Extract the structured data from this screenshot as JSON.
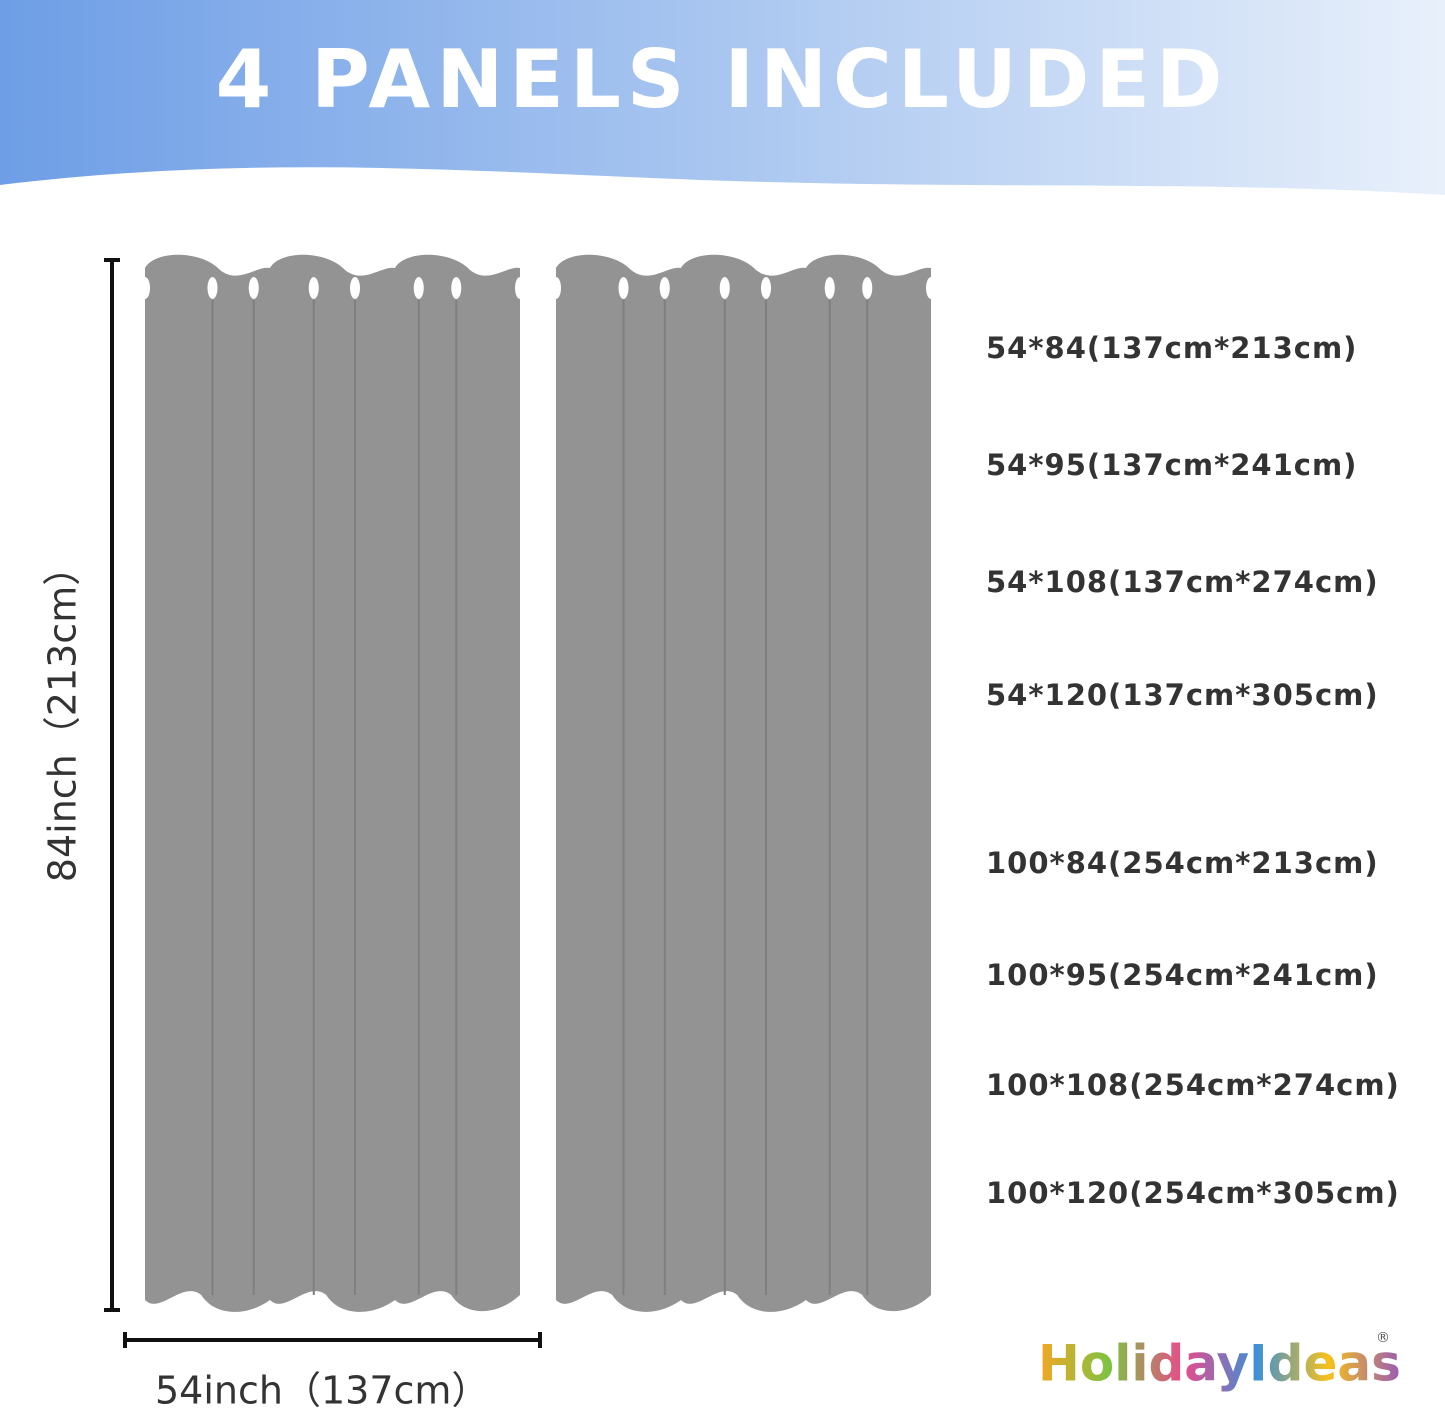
{
  "header": {
    "title": "4 PANELS INCLUDED"
  },
  "dimensions": {
    "height": "84inch（213cm）",
    "width": "54inch（137cm）"
  },
  "sizes": [
    "54*84(137cm*213cm)",
    "54*95(137cm*241cm)",
    "54*108(137cm*274cm)",
    "54*120(137cm*305cm)",
    "100*84(254cm*213cm)",
    "100*95(254cm*241cm)",
    "100*108(254cm*274cm)",
    "100*120(254cm*305cm)"
  ],
  "brand": {
    "name": "HolidayIdeas",
    "mark": "®"
  }
}
